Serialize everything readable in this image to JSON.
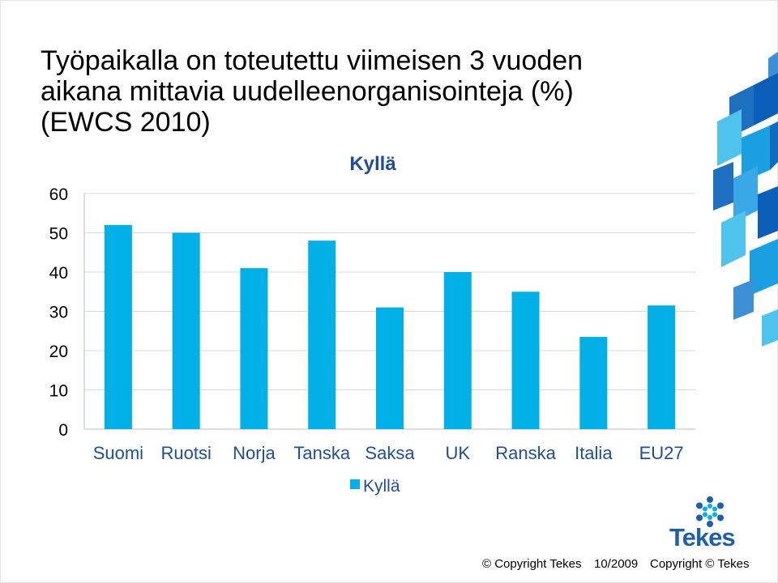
{
  "slide": {
    "title_lines": [
      "Työpaikalla on toteutettu viimeisen 3 vuoden",
      "aikana mittavia uudelleenorganisointeja (%)",
      "(EWCS 2010)"
    ]
  },
  "chart_data": {
    "type": "bar",
    "title": "Kyllä",
    "categories": [
      "Suomi",
      "Ruotsi",
      "Norja",
      "Tanska",
      "Saksa",
      "UK",
      "Ranska",
      "Italia",
      "EU27"
    ],
    "series": [
      {
        "name": "Kyllä",
        "values": [
          52,
          50,
          41,
          48,
          31,
          40,
          35,
          23.5,
          31.5
        ]
      }
    ],
    "ylim": [
      0,
      60
    ],
    "yticks": [
      0,
      10,
      20,
      30,
      40,
      50,
      60
    ],
    "grid": true,
    "legend": "bottom",
    "bar_color": "#00b0e6",
    "title_color": "#1f4e96",
    "category_color": "#1f4e96"
  },
  "footer": {
    "copyright_left": "© Copyright Tekes",
    "date": "10/2009",
    "copyright_right": "Copyright © Tekes"
  },
  "logo": {
    "text": "Tekes",
    "icon": "tekes-asterisk-logo-icon"
  }
}
